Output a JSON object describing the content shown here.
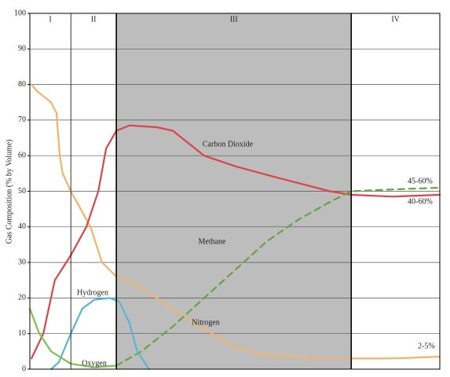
{
  "chart_data": {
    "type": "line",
    "ylabel": "Gas Composition (% by Volume)",
    "ylim": [
      0,
      100
    ],
    "yticks": [
      0,
      10,
      20,
      30,
      40,
      50,
      60,
      70,
      80,
      90,
      100
    ],
    "xlim": [
      0,
      100
    ],
    "grid": true,
    "phases": [
      {
        "label": "I",
        "start": 0,
        "end": 10,
        "color": "#ffffff"
      },
      {
        "label": "II",
        "start": 10,
        "end": 21.1,
        "color": "#ffffff"
      },
      {
        "label": "III",
        "start": 21.1,
        "end": 78.4,
        "color": "#bdbdbd"
      },
      {
        "label": "IV",
        "start": 78.4,
        "end": 100,
        "color": "#ffffff"
      }
    ],
    "series": [
      {
        "name": "Nitrogen",
        "color": "#f0b46a",
        "dashed": false,
        "x": [
          0.4,
          1.9,
          5.2,
          6.5,
          7.3,
          8,
          10,
          14.8,
          17.6,
          21.1,
          25.3,
          31,
          38.7,
          44.4,
          50.2,
          57.9,
          69.3,
          78.4,
          88.5,
          100
        ],
        "values": [
          80,
          78,
          75,
          72,
          60,
          55,
          50,
          40,
          30,
          26,
          24,
          20,
          14,
          10,
          6,
          4,
          3,
          3,
          3,
          3.5
        ]
      },
      {
        "name": "Carbon Dioxide",
        "color": "#d9454a",
        "dashed": false,
        "x": [
          0.4,
          3.3,
          6.1,
          10,
          13.8,
          16.7,
          18.6,
          21.1,
          24.3,
          31,
          34.9,
          42.5,
          50.2,
          59.8,
          73.2,
          78.4,
          88.5,
          100
        ],
        "values": [
          3,
          10,
          25,
          32,
          40,
          50,
          62,
          67,
          68.5,
          68,
          67,
          60,
          57,
          54,
          50,
          49,
          48.5,
          49
        ]
      },
      {
        "name": "Methane",
        "color": "#6aa145",
        "dashed": true,
        "x": [
          21.1,
          27.2,
          34.9,
          42.5,
          50.2,
          57.9,
          65.5,
          73.2,
          78.4,
          88.5,
          100
        ],
        "values": [
          1,
          5,
          12,
          20,
          28,
          36,
          42,
          47,
          50,
          50.5,
          51
        ]
      },
      {
        "name": "Hydrogen",
        "color": "#5ab4d9",
        "dashed": false,
        "x": [
          5.2,
          7.1,
          10,
          12.8,
          15.7,
          19.5,
          21.8,
          24.3,
          26.2,
          29.1
        ],
        "values": [
          0,
          2,
          10,
          17,
          19.5,
          20,
          19,
          13,
          5,
          0
        ]
      },
      {
        "name": "Oxygen",
        "color": "#7cc24f",
        "dashed": false,
        "x": [
          0,
          2.3,
          5.2,
          10,
          15.7,
          21.1
        ],
        "values": [
          17,
          10,
          5,
          1.5,
          0.5,
          1
        ]
      }
    ],
    "annotations": [
      "Carbon Dioxide",
      "Methane",
      "Hydrogen",
      "Nitrogen",
      "Oxygen",
      "45-60%",
      "40-60%",
      "2-5%"
    ]
  }
}
